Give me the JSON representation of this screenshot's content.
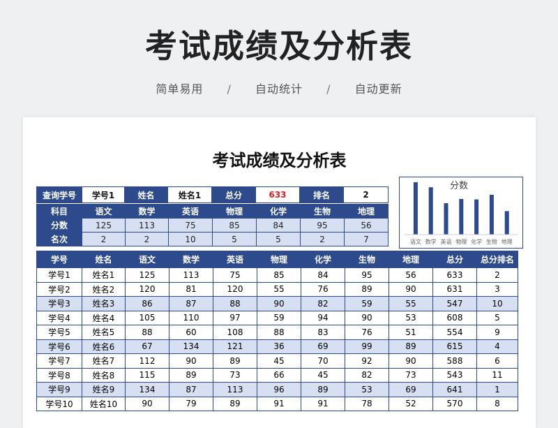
{
  "hero": {
    "title": "考试成绩及分析表",
    "subtitle": [
      "简单易用",
      "/",
      "自动统计",
      "/",
      "自动更新"
    ]
  },
  "sheet": {
    "title": "考试成绩及分析表",
    "query": {
      "id_label": "查询学号",
      "id_value": "学号1",
      "name_label": "姓名",
      "name_value": "姓名1",
      "total_label": "总分",
      "total_value": "633",
      "rank_label": "排名",
      "rank_value": "2"
    },
    "subjects_label": "科目",
    "scores_label": "分数",
    "ranks_label": "名次",
    "subjects": [
      "语文",
      "数学",
      "英语",
      "物理",
      "化学",
      "生物",
      "地理"
    ],
    "scores": [
      "125",
      "113",
      "75",
      "85",
      "84",
      "95",
      "56"
    ],
    "ranks": [
      "2",
      "2",
      "10",
      "5",
      "5",
      "2",
      "7"
    ],
    "table": {
      "headers": [
        "学号",
        "姓名",
        "语文",
        "数学",
        "英语",
        "物理",
        "化学",
        "生物",
        "地理",
        "总分",
        "总分排名"
      ],
      "rows": [
        [
          "学号1",
          "姓名1",
          "125",
          "113",
          "75",
          "85",
          "84",
          "95",
          "56",
          "633",
          "2"
        ],
        [
          "学号2",
          "姓名2",
          "120",
          "81",
          "120",
          "55",
          "76",
          "89",
          "90",
          "631",
          "3"
        ],
        [
          "学号3",
          "姓名3",
          "86",
          "87",
          "88",
          "90",
          "82",
          "59",
          "55",
          "547",
          "10"
        ],
        [
          "学号4",
          "姓名4",
          "105",
          "110",
          "97",
          "59",
          "94",
          "90",
          "53",
          "608",
          "5"
        ],
        [
          "学号5",
          "姓名5",
          "88",
          "60",
          "108",
          "88",
          "83",
          "76",
          "51",
          "554",
          "9"
        ],
        [
          "学号6",
          "姓名6",
          "67",
          "134",
          "121",
          "36",
          "69",
          "99",
          "89",
          "615",
          "4"
        ],
        [
          "学号7",
          "姓名7",
          "112",
          "90",
          "89",
          "45",
          "70",
          "92",
          "90",
          "588",
          "6"
        ],
        [
          "学号8",
          "姓名8",
          "115",
          "89",
          "73",
          "66",
          "45",
          "82",
          "73",
          "543",
          "11"
        ],
        [
          "学号9",
          "姓名9",
          "134",
          "87",
          "113",
          "96",
          "89",
          "53",
          "69",
          "641",
          "1"
        ],
        [
          "学号10",
          "姓名10",
          "90",
          "79",
          "89",
          "91",
          "91",
          "78",
          "52",
          "570",
          "8"
        ]
      ]
    }
  },
  "chart_data": {
    "type": "bar",
    "title": "分数",
    "categories": [
      "语文",
      "数学",
      "英语",
      "物理",
      "化学",
      "生物",
      "地理"
    ],
    "values": [
      125,
      113,
      75,
      85,
      84,
      95,
      56
    ],
    "ylim": [
      0,
      130
    ],
    "grid": false,
    "bar_color": "#2c4a8c"
  },
  "colors": {
    "header_blue": "#2c4a8c",
    "stripe": "#d7e0f3",
    "highlight_red": "#e02020"
  }
}
